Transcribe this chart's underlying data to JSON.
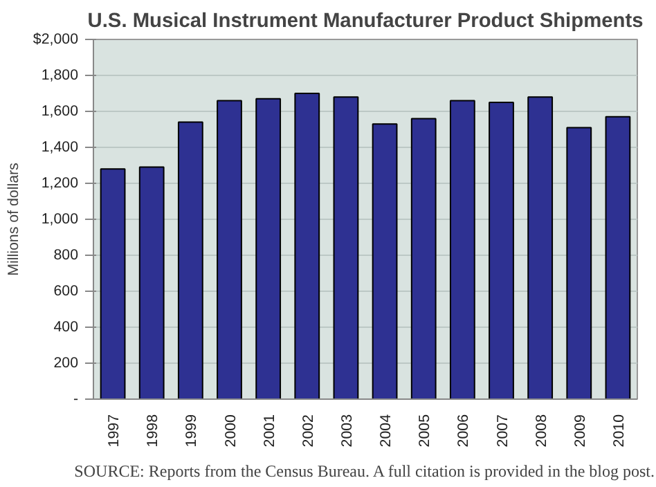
{
  "chart_data": {
    "type": "bar",
    "title": "U.S. Musical Instrument Manufacturer Product Shipments",
    "ylabel": "Millions of dollars",
    "annotations": [
      "SOURCE: Reports from the Census Bureau. A full citation is provided in the blog post."
    ],
    "categories": [
      "1997",
      "1998",
      "1999",
      "2000",
      "2001",
      "2002",
      "2003",
      "2004",
      "2005",
      "2006",
      "2007",
      "2008",
      "2009",
      "2010"
    ],
    "values": [
      1280,
      1290,
      1540,
      1660,
      1670,
      1700,
      1680,
      1530,
      1560,
      1660,
      1650,
      1680,
      1510,
      1570
    ],
    "color": "#2e3192",
    "ylim": [
      0,
      2000
    ],
    "yticks": [
      {
        "value": 0,
        "label": "-"
      },
      {
        "value": 200,
        "label": "200"
      },
      {
        "value": 400,
        "label": "400"
      },
      {
        "value": 600,
        "label": "600"
      },
      {
        "value": 800,
        "label": "800"
      },
      {
        "value": 1000,
        "label": "1,000"
      },
      {
        "value": 1200,
        "label": "1,200"
      },
      {
        "value": 1400,
        "label": "1,400"
      },
      {
        "value": 1600,
        "label": "1,600"
      },
      {
        "value": 1800,
        "label": "1,800"
      },
      {
        "value": 2000,
        "label": "$2,000"
      }
    ],
    "grid": "y"
  }
}
